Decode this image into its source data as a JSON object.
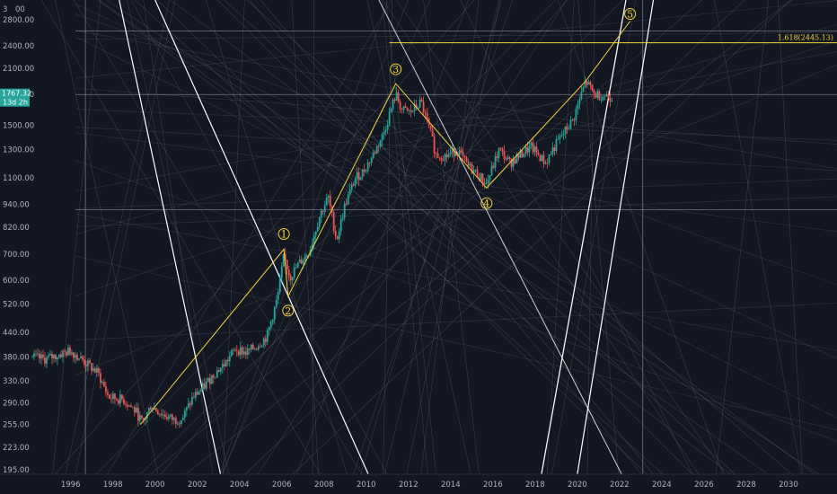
{
  "chart_data": {
    "type": "candlestick",
    "scale": "log",
    "xlim": [
      1994.3,
      2032.5
    ],
    "ylim": [
      190,
      3150
    ],
    "x_ticks": [
      "1996",
      "1998",
      "2000",
      "2002",
      "2004",
      "2006",
      "2008",
      "2010",
      "2012",
      "2014",
      "2016",
      "2018",
      "2020",
      "2022",
      "2024",
      "2026",
      "2028",
      "2030"
    ],
    "y_ticks": [
      "3",
      "2800.00",
      "2400.00",
      "2100.00",
      "1800.00",
      "1500.00",
      "1300.00",
      "1100.00",
      "940.00",
      "820.00",
      "700.00",
      "600.00",
      "520.00",
      "440.00",
      "380.00",
      "330.00",
      "290.00",
      "255.00",
      "223.00",
      "195.00"
    ],
    "y_top_partial": "00",
    "current_price": {
      "value": "1767.32",
      "countdown": "13d 2h"
    },
    "price_anchors": [
      [
        1994.3,
        380
      ],
      [
        1995.0,
        375
      ],
      [
        1996.2,
        395
      ],
      [
        1996.8,
        372
      ],
      [
        1997.5,
        345
      ],
      [
        1998.0,
        300
      ],
      [
        1998.7,
        295
      ],
      [
        1999.3,
        275
      ],
      [
        1999.6,
        257
      ],
      [
        2000.0,
        285
      ],
      [
        2000.6,
        270
      ],
      [
        2001.1,
        262
      ],
      [
        2001.5,
        265
      ],
      [
        2002.0,
        300
      ],
      [
        2002.5,
        318
      ],
      [
        2003.0,
        345
      ],
      [
        2003.5,
        365
      ],
      [
        2004.0,
        400
      ],
      [
        2004.5,
        390
      ],
      [
        2005.0,
        405
      ],
      [
        2005.5,
        430
      ],
      [
        2006.0,
        540
      ],
      [
        2006.3,
        690
      ],
      [
        2006.6,
        610
      ],
      [
        2007.0,
        660
      ],
      [
        2007.5,
        710
      ],
      [
        2008.0,
        880
      ],
      [
        2008.4,
        980
      ],
      [
        2008.8,
        760
      ],
      [
        2009.2,
        940
      ],
      [
        2009.7,
        1100
      ],
      [
        2010.0,
        1130
      ],
      [
        2010.5,
        1250
      ],
      [
        2011.0,
        1420
      ],
      [
        2011.6,
        1800
      ],
      [
        2011.9,
        1640
      ],
      [
        2012.3,
        1620
      ],
      [
        2012.8,
        1720
      ],
      [
        2013.3,
        1400
      ],
      [
        2013.5,
        1260
      ],
      [
        2014.0,
        1250
      ],
      [
        2014.5,
        1300
      ],
      [
        2015.0,
        1180
      ],
      [
        2015.5,
        1120
      ],
      [
        2015.9,
        1060
      ],
      [
        2016.5,
        1300
      ],
      [
        2017.0,
        1200
      ],
      [
        2017.5,
        1260
      ],
      [
        2018.0,
        1320
      ],
      [
        2018.7,
        1200
      ],
      [
        2019.0,
        1290
      ],
      [
        2019.5,
        1420
      ],
      [
        2020.0,
        1550
      ],
      [
        2020.6,
        1950
      ],
      [
        2021.0,
        1800
      ],
      [
        2021.5,
        1790
      ],
      [
        2021.9,
        1767
      ]
    ],
    "wave_points": [
      {
        "label": "1",
        "x": 2006.3,
        "y": 720
      },
      {
        "label": "2",
        "x": 2006.5,
        "y": 545
      },
      {
        "label": "3",
        "x": 2011.6,
        "y": 1920
      },
      {
        "label": "4",
        "x": 2015.9,
        "y": 1035
      },
      {
        "label": "5",
        "x": 2022.7,
        "y": 2780
      }
    ],
    "wave_path": [
      [
        1999.5,
        255
      ],
      [
        2006.3,
        720
      ],
      [
        2006.5,
        545
      ],
      [
        2011.6,
        1920
      ],
      [
        2015.9,
        1035
      ],
      [
        2020.6,
        1950
      ],
      [
        2022.7,
        2780
      ]
    ],
    "wave_start": [
      1999.5,
      255
    ],
    "fib": {
      "label": "1.618(2445.13)",
      "value": 2445.13,
      "x_start": 2011.3
    },
    "horizontal_levels": [
      2620,
      1800,
      910
    ],
    "vertical_lines": [
      1996.9,
      2023.3
    ],
    "trendlines": [
      {
        "from": [
          2010.8,
          3150
        ],
        "to": [
          2022.3,
          190
        ]
      }
    ],
    "channel_lines": [
      {
        "from": [
          1998.5,
          3150
        ],
        "to": [
          2003.3,
          190
        ]
      },
      {
        "from": [
          2000.2,
          3150
        ],
        "to": [
          2010.3,
          190
        ]
      },
      {
        "from": [
          2018.5,
          190
        ],
        "to": [
          2022.5,
          3150
        ]
      },
      {
        "from": [
          2020.2,
          190
        ],
        "to": [
          2023.8,
          3150
        ]
      }
    ],
    "colors": {
      "background": "#131722",
      "up": "#26a69a",
      "down": "#ef5350",
      "wave": "#f2d43d",
      "channel": "#ffffff",
      "grid": "#9598a1",
      "axis_text": "#b2b5be",
      "price_tag": "#26a69a"
    }
  }
}
